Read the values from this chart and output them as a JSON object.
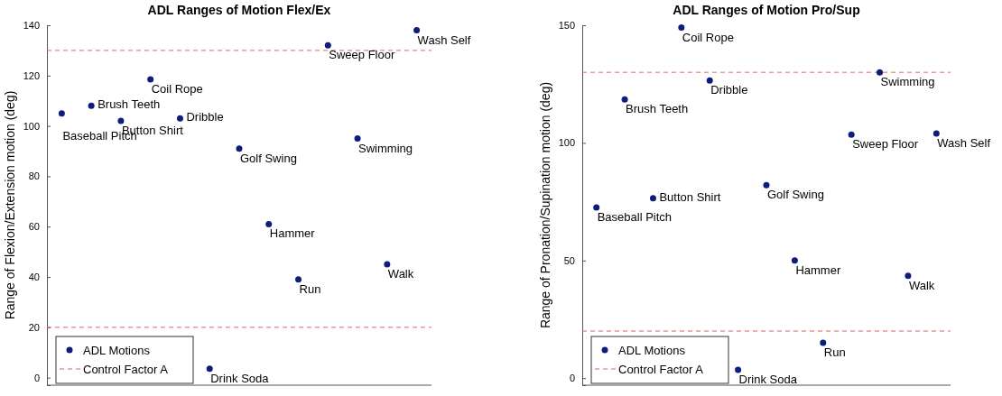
{
  "chart_data": [
    {
      "type": "scatter",
      "title": "ADL Ranges of Motion Flex/Ex",
      "ylabel": "Range of Flexion/Extension motion (deg)",
      "categories": [
        null,
        null,
        null,
        null,
        null,
        null,
        null,
        null,
        null,
        null,
        null,
        null,
        null
      ],
      "series": [
        {
          "name": "ADL Motions",
          "color": "#0b1f7a",
          "values": [
            105,
            108,
            102,
            118.5,
            103,
            3.5,
            91,
            61,
            39,
            132,
            95,
            45,
            138
          ]
        }
      ],
      "annotations": [
        "Baseball Pitch",
        "Brush Teeth",
        "Button Shirt",
        "Coil Rope",
        "Dribble",
        "Drink Soda",
        "Golf Swing",
        "Hammer",
        "Run",
        "Sweep Floor",
        "Swimming",
        "Walk",
        "Wash Self"
      ],
      "ylim": [
        -3,
        140
      ],
      "yticks": [
        0,
        20,
        40,
        60,
        80,
        100,
        120,
        140
      ],
      "tick_labels": "y",
      "ref_lines": [
        {
          "axis": "y",
          "value": 130,
          "label": "Control Factor A",
          "color": "#e06666",
          "line_style": "dashed"
        },
        {
          "axis": "y",
          "value": 20,
          "color": "#e06666",
          "line_style": "dashed"
        }
      ],
      "marker": "circle",
      "legend": "bottom left",
      "grid": false
    },
    {
      "type": "scatter",
      "title": "ADL Ranges of Motion Pro/Sup",
      "ylabel": "Range of Pronation/Supination motion (deg)",
      "categories": [
        null,
        null,
        null,
        null,
        null,
        null,
        null,
        null,
        null,
        null,
        null,
        null,
        null
      ],
      "series": [
        {
          "name": "ADL Motions",
          "color": "#0b1f7a",
          "values": [
            72.5,
            118.5,
            76.5,
            149,
            126.5,
            3.5,
            82,
            50,
            15,
            103.5,
            130,
            43.5,
            104
          ]
        }
      ],
      "annotations": [
        "Baseball Pitch",
        "Brush Teeth",
        "Button Shirt",
        "Coil Rope",
        "Dribble",
        "Drink Soda",
        "Golf Swing",
        "Hammer",
        "Run",
        "Sweep Floor",
        "Swimming",
        "Walk",
        "Wash Self"
      ],
      "ylim": [
        -3,
        150
      ],
      "yticks": [
        0,
        50,
        100,
        150
      ],
      "tick_labels": "y",
      "ref_lines": [
        {
          "axis": "y",
          "value": 130,
          "label": "Control Factor A",
          "color": "#e06666",
          "line_style": "dashed"
        },
        {
          "axis": "y",
          "value": 20,
          "color": "#e06666",
          "line_style": "dashed"
        }
      ],
      "marker": "circle",
      "legend": "bottom left",
      "grid": false
    }
  ]
}
